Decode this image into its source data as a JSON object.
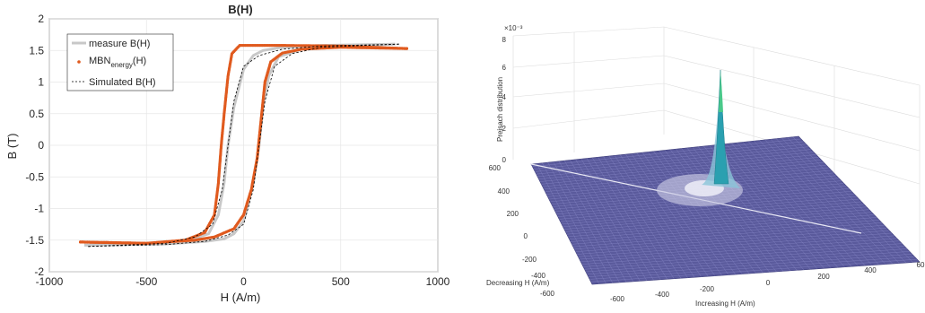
{
  "chart_data": [
    {
      "type": "line",
      "title": "B(H)",
      "xlabel": "H (A/m)",
      "ylabel": "B (T)",
      "xlim": [
        -1000,
        1000
      ],
      "ylim": [
        -2,
        2
      ],
      "x_ticks": [
        "-1000",
        "-500",
        "0",
        "500",
        "1000"
      ],
      "y_ticks": [
        "2",
        "1.5",
        "1",
        "0.5",
        "0",
        "-0.5",
        "-1",
        "-1.5",
        "-2"
      ],
      "grid": true,
      "legend_position": "top-left",
      "series": [
        {
          "name": "measure B(H)",
          "color": "#c8c8c8",
          "style": "solid",
          "branch_up": [
            [
              -820,
              -1.58
            ],
            [
              -400,
              -1.56
            ],
            [
              -200,
              -1.52
            ],
            [
              -100,
              -1.48
            ],
            [
              -50,
              -1.4
            ],
            [
              0,
              -1.2
            ],
            [
              50,
              -0.6
            ],
            [
              80,
              0
            ],
            [
              100,
              0.6
            ],
            [
              130,
              1.1
            ],
            [
              180,
              1.4
            ],
            [
              300,
              1.52
            ],
            [
              500,
              1.57
            ],
            [
              780,
              1.6
            ]
          ],
          "branch_down": [
            [
              780,
              1.6
            ],
            [
              400,
              1.58
            ],
            [
              200,
              1.55
            ],
            [
              100,
              1.5
            ],
            [
              50,
              1.42
            ],
            [
              0,
              1.2
            ],
            [
              -50,
              0.6
            ],
            [
              -80,
              0
            ],
            [
              -100,
              -0.6
            ],
            [
              -130,
              -1.1
            ],
            [
              -180,
              -1.4
            ],
            [
              -300,
              -1.52
            ],
            [
              -500,
              -1.56
            ],
            [
              -820,
              -1.58
            ]
          ]
        },
        {
          "name": "MBN_energy(H)",
          "color": "#e05a1e",
          "style": "dots",
          "branch_up": [
            [
              -840,
              -1.53
            ],
            [
              -500,
              -1.55
            ],
            [
              -250,
              -1.5
            ],
            [
              -150,
              -1.45
            ],
            [
              -50,
              -1.32
            ],
            [
              0,
              -1.1
            ],
            [
              40,
              -0.7
            ],
            [
              70,
              -0.2
            ],
            [
              90,
              0.4
            ],
            [
              110,
              1.0
            ],
            [
              140,
              1.32
            ],
            [
              200,
              1.46
            ],
            [
              300,
              1.52
            ],
            [
              500,
              1.55
            ],
            [
              840,
              1.53
            ]
          ],
          "branch_down": [
            [
              840,
              1.53
            ],
            [
              500,
              1.57
            ],
            [
              200,
              1.58
            ],
            [
              -20,
              1.58
            ],
            [
              -60,
              1.45
            ],
            [
              -80,
              1.1
            ],
            [
              -100,
              0.5
            ],
            [
              -115,
              0
            ],
            [
              -130,
              -0.6
            ],
            [
              -150,
              -1.1
            ],
            [
              -200,
              -1.38
            ],
            [
              -300,
              -1.5
            ],
            [
              -500,
              -1.55
            ],
            [
              -840,
              -1.53
            ]
          ]
        },
        {
          "name": "Simulated B(H)",
          "color": "#000000",
          "style": "dashed",
          "branch_up": [
            [
              -800,
              -1.6
            ],
            [
              -400,
              -1.57
            ],
            [
              -200,
              -1.52
            ],
            [
              -80,
              -1.42
            ],
            [
              0,
              -1.25
            ],
            [
              50,
              -0.7
            ],
            [
              80,
              0
            ],
            [
              110,
              0.7
            ],
            [
              160,
              1.25
            ],
            [
              250,
              1.45
            ],
            [
              400,
              1.55
            ],
            [
              800,
              1.6
            ]
          ],
          "branch_down": [
            [
              800,
              1.6
            ],
            [
              400,
              1.57
            ],
            [
              200,
              1.52
            ],
            [
              80,
              1.42
            ],
            [
              0,
              1.25
            ],
            [
              -50,
              0.7
            ],
            [
              -80,
              0
            ],
            [
              -110,
              -0.7
            ],
            [
              -160,
              -1.25
            ],
            [
              -250,
              -1.45
            ],
            [
              -400,
              -1.55
            ],
            [
              -800,
              -1.6
            ]
          ]
        }
      ],
      "legend": {
        "measure": "measure B(H)",
        "mbn_base": "MBN",
        "mbn_sub": "energy",
        "mbn_suffix": "(H)",
        "simulated": "Simulated B(H)"
      }
    },
    {
      "type": "surface3d",
      "zlabel": "Preisach distribution",
      "xlabel": "Increasing H (A/m)",
      "ylabel": "Decreasing H (A/m)",
      "z_exponent": "×10⁻³",
      "z_ticks": [
        "0",
        "2",
        "4",
        "6",
        "8"
      ],
      "x_ticks": [
        "-600",
        "-400",
        "-200",
        "0",
        "200",
        "400",
        "60"
      ],
      "y_ticks": [
        "600",
        "400",
        "200",
        "0",
        "-200",
        "-400",
        "-600"
      ],
      "zlim": [
        0,
        0.008
      ],
      "surface_color": "#5a5a9c",
      "peak_color": "#2aa0b0",
      "grid": true
    }
  ]
}
